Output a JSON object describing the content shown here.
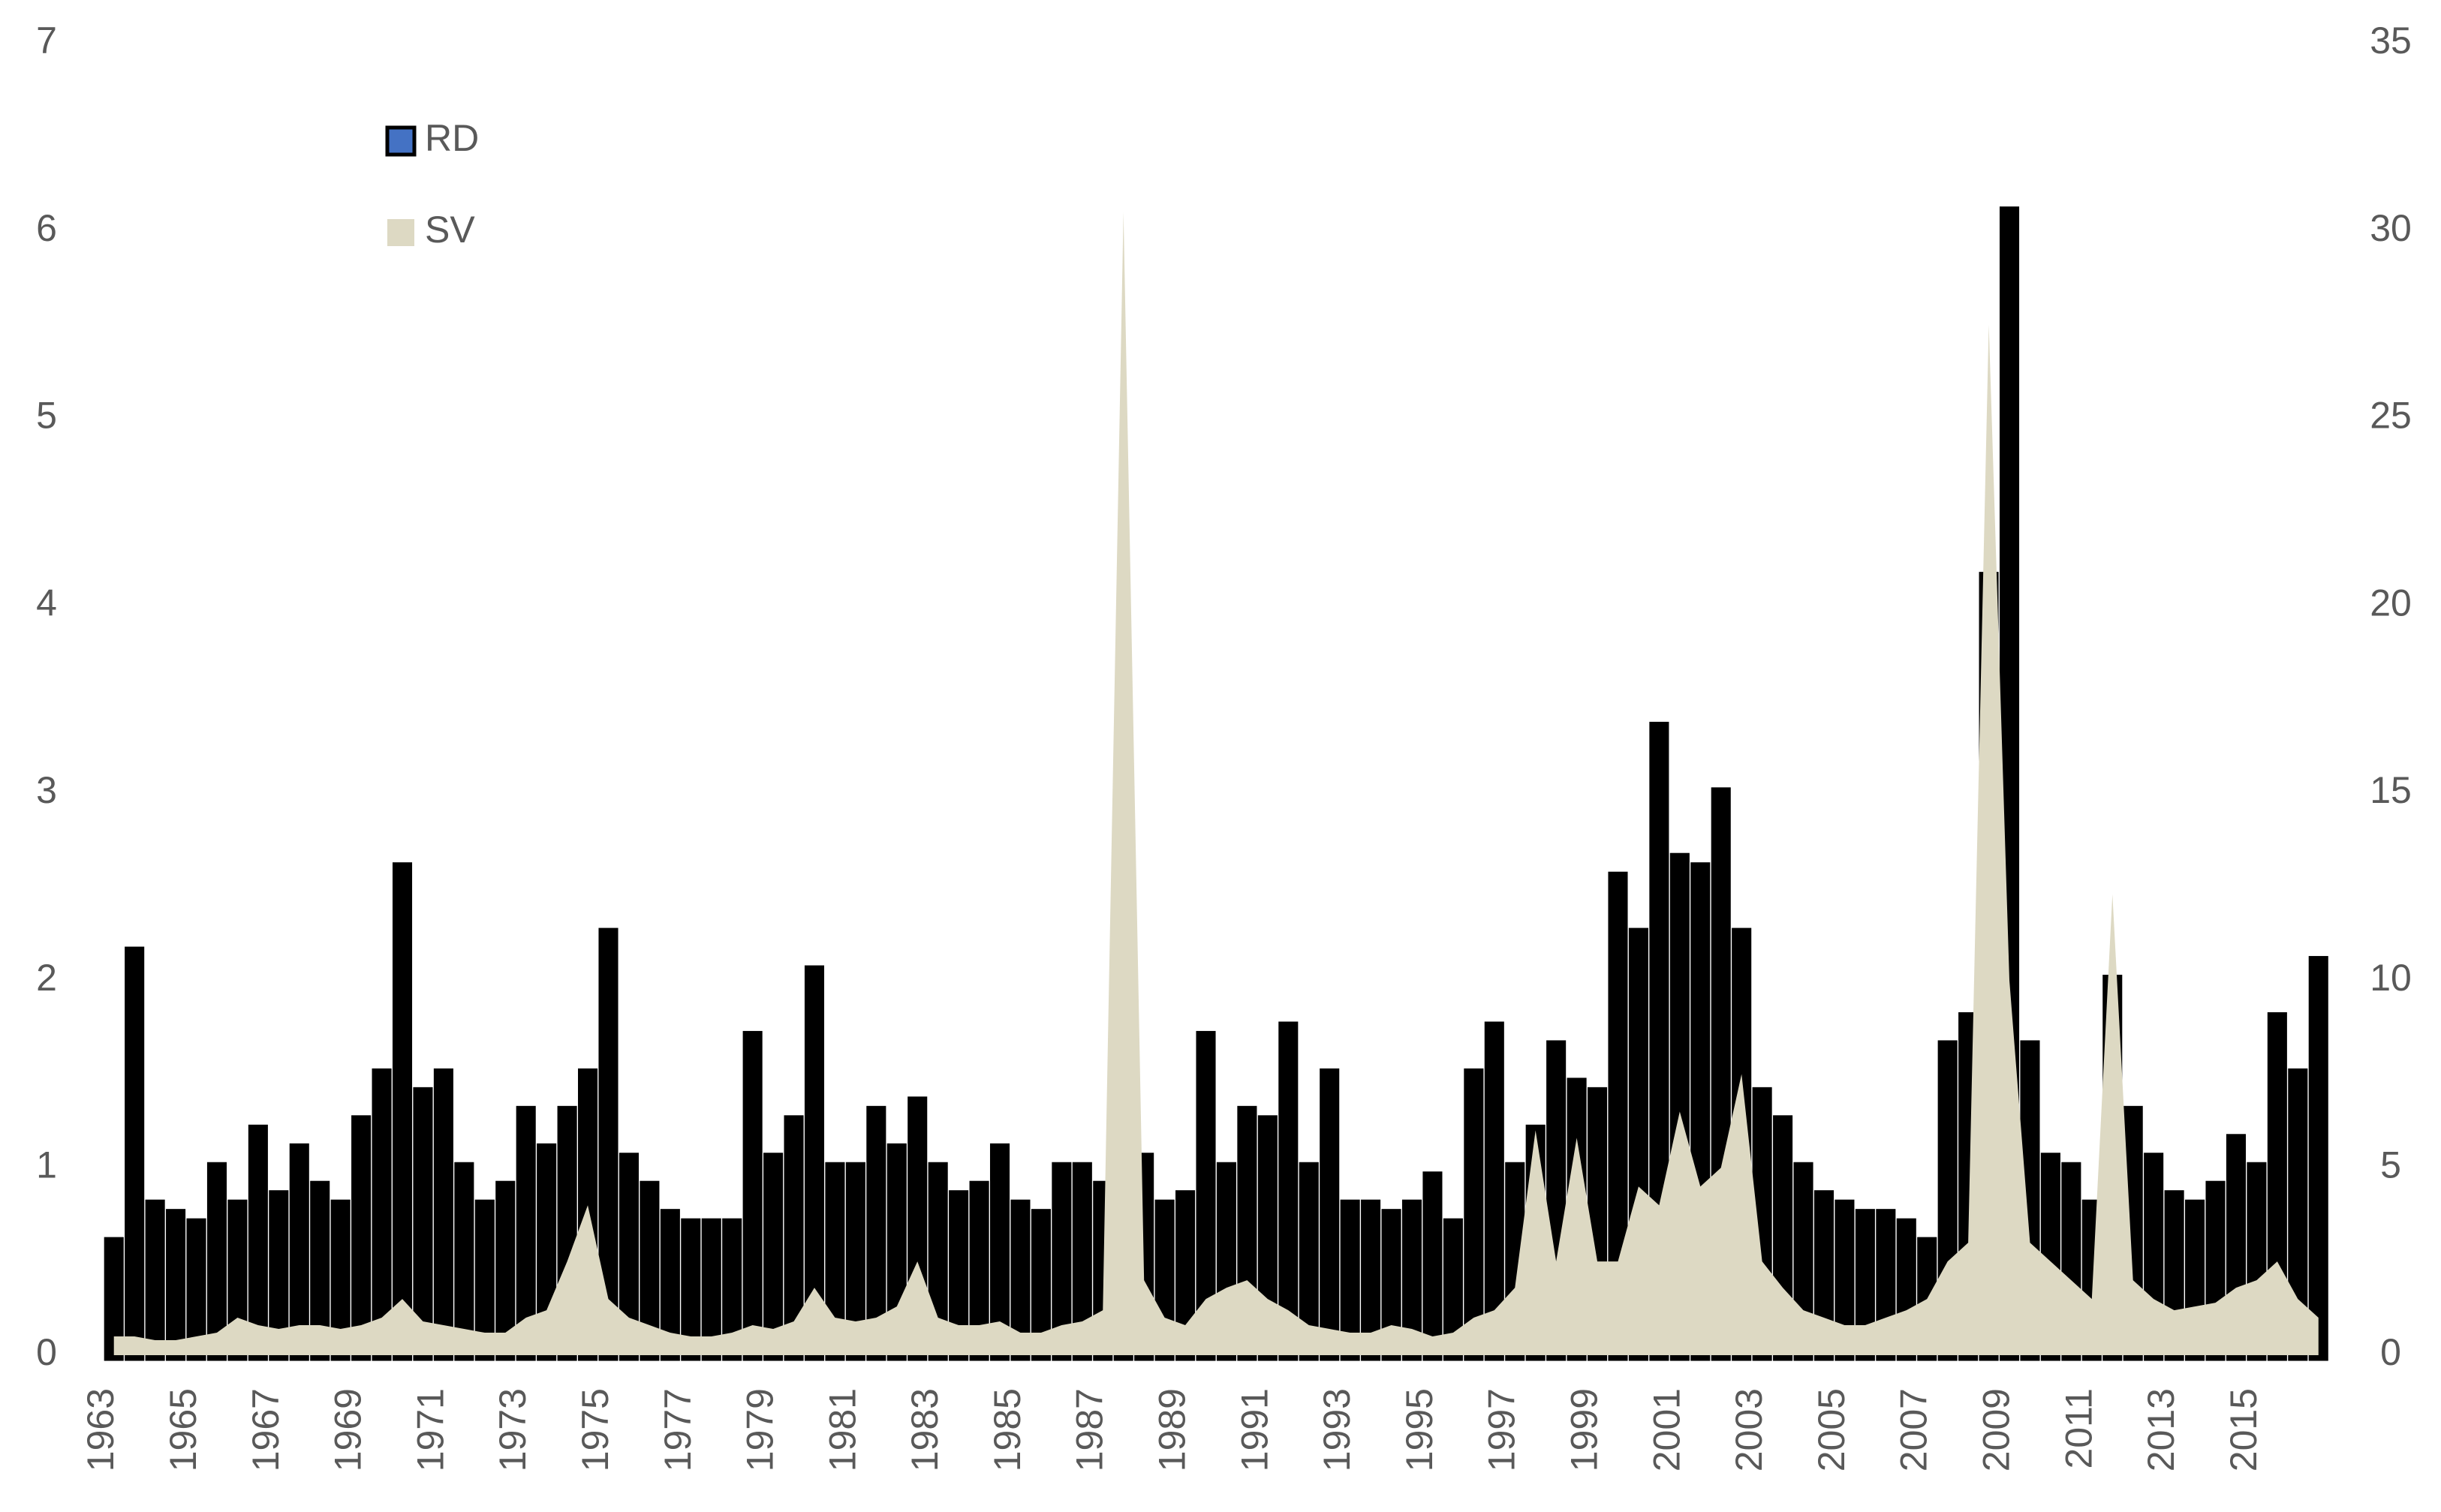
{
  "chart_data": {
    "type": "bar-area",
    "x": [
      1963,
      1963.5,
      1964,
      1964.5,
      1965,
      1965.5,
      1966,
      1966.5,
      1967,
      1967.5,
      1968,
      1968.5,
      1969,
      1969.5,
      1970,
      1970.5,
      1971,
      1971.5,
      1972,
      1972.5,
      1973,
      1973.5,
      1974,
      1974.5,
      1975,
      1975.5,
      1976,
      1976.5,
      1977,
      1977.5,
      1978,
      1978.5,
      1979,
      1979.5,
      1980,
      1980.5,
      1981,
      1981.5,
      1982,
      1982.5,
      1983,
      1983.5,
      1984,
      1984.5,
      1985,
      1985.5,
      1986,
      1986.5,
      1987,
      1987.5,
      1988,
      1988.5,
      1989,
      1989.5,
      1990,
      1990.5,
      1991,
      1991.5,
      1992,
      1992.5,
      1993,
      1993.5,
      1994,
      1994.5,
      1995,
      1995.5,
      1996,
      1996.5,
      1997,
      1997.5,
      1998,
      1998.5,
      1999,
      1999.5,
      2000,
      2000.5,
      2001,
      2001.5,
      2002,
      2002.5,
      2003,
      2003.5,
      2004,
      2004.5,
      2005,
      2005.5,
      2006,
      2006.5,
      2007,
      2007.5,
      2008,
      2008.5,
      2009,
      2009.5,
      2010,
      2010.5,
      2011,
      2011.5,
      2012,
      2012.5,
      2013,
      2013.5,
      2014,
      2014.5,
      2015,
      2015.5,
      2016,
      2016.5
    ],
    "series": [
      {
        "name": "RD",
        "color": "#4472c4",
        "edge_color": "#000000",
        "kind": "bar",
        "values": [
          0.6,
          2.15,
          0.8,
          0.75,
          0.7,
          1.0,
          0.8,
          1.2,
          0.85,
          1.1,
          0.9,
          0.8,
          1.25,
          1.5,
          2.6,
          1.4,
          1.5,
          1.0,
          0.8,
          0.9,
          1.3,
          1.1,
          1.3,
          1.5,
          2.25,
          1.05,
          0.9,
          0.75,
          0.7,
          0.7,
          0.7,
          1.7,
          1.05,
          1.25,
          2.05,
          1.0,
          1.0,
          1.3,
          1.1,
          1.35,
          1.0,
          0.85,
          0.9,
          1.1,
          0.8,
          0.75,
          1.0,
          1.0,
          0.9,
          1.75,
          1.05,
          0.8,
          0.85,
          1.7,
          1.0,
          1.3,
          1.25,
          1.75,
          1.0,
          1.5,
          0.8,
          0.8,
          0.75,
          0.8,
          0.95,
          0.7,
          1.5,
          1.75,
          1.0,
          1.2,
          1.65,
          1.45,
          1.4,
          2.55,
          2.25,
          3.35,
          2.65,
          2.6,
          3.0,
          2.25,
          1.4,
          1.25,
          1.0,
          0.85,
          0.8,
          0.75,
          0.75,
          0.7,
          0.6,
          1.65,
          1.8,
          4.15,
          6.1,
          1.65,
          1.05,
          1.0,
          0.8,
          2.0,
          1.3,
          1.05,
          0.85,
          0.8,
          0.9,
          1.15,
          1.0,
          1.8,
          1.5,
          2.1
        ]
      },
      {
        "name": "SV",
        "color": "#ddd9c3",
        "kind": "area",
        "axis": "y2",
        "values": [
          0.5,
          0.5,
          0.4,
          0.4,
          0.5,
          0.6,
          1.0,
          0.8,
          0.7,
          0.8,
          0.8,
          0.7,
          0.8,
          1.0,
          1.5,
          0.9,
          0.8,
          0.7,
          0.6,
          0.6,
          1.0,
          1.2,
          2.5,
          4.0,
          1.5,
          1.0,
          0.8,
          0.6,
          0.5,
          0.5,
          0.6,
          0.8,
          0.7,
          0.9,
          1.8,
          1.0,
          0.9,
          1.0,
          1.3,
          2.5,
          1.0,
          0.8,
          0.8,
          0.9,
          0.6,
          0.6,
          0.8,
          0.9,
          1.2,
          30.5,
          2.0,
          1.0,
          0.8,
          1.5,
          1.8,
          2.0,
          1.5,
          1.2,
          0.8,
          0.7,
          0.6,
          0.6,
          0.8,
          0.7,
          0.5,
          0.6,
          1.0,
          1.2,
          1.8,
          6.0,
          2.5,
          5.8,
          2.5,
          2.5,
          4.5,
          4.0,
          6.5,
          4.5,
          5.0,
          7.5,
          2.5,
          1.8,
          1.2,
          1.0,
          0.8,
          0.8,
          1.0,
          1.2,
          1.5,
          2.5,
          3.0,
          27.5,
          10,
          3.0,
          2.5,
          2.0,
          1.5,
          12.3,
          2.0,
          1.5,
          1.2,
          1.3,
          1.4,
          1.8,
          2.0,
          2.5,
          1.5,
          1.0
        ]
      }
    ],
    "xlim": [
      1963,
      2016.7
    ],
    "xticks": [
      1963,
      1965,
      1967,
      1969,
      1971,
      1973,
      1975,
      1977,
      1979,
      1981,
      1983,
      1985,
      1987,
      1989,
      1991,
      1993,
      1995,
      1997,
      1999,
      2001,
      2003,
      2005,
      2007,
      2009,
      2011,
      2013,
      2015
    ],
    "ylim": [
      0,
      7
    ],
    "yticks": [
      0,
      1,
      2,
      3,
      4,
      5,
      6,
      7
    ],
    "y2lim": [
      0,
      35
    ],
    "y2ticks": [
      0,
      5,
      10,
      15,
      20,
      25,
      30,
      35
    ],
    "legend": "top-left",
    "grid": false
  }
}
